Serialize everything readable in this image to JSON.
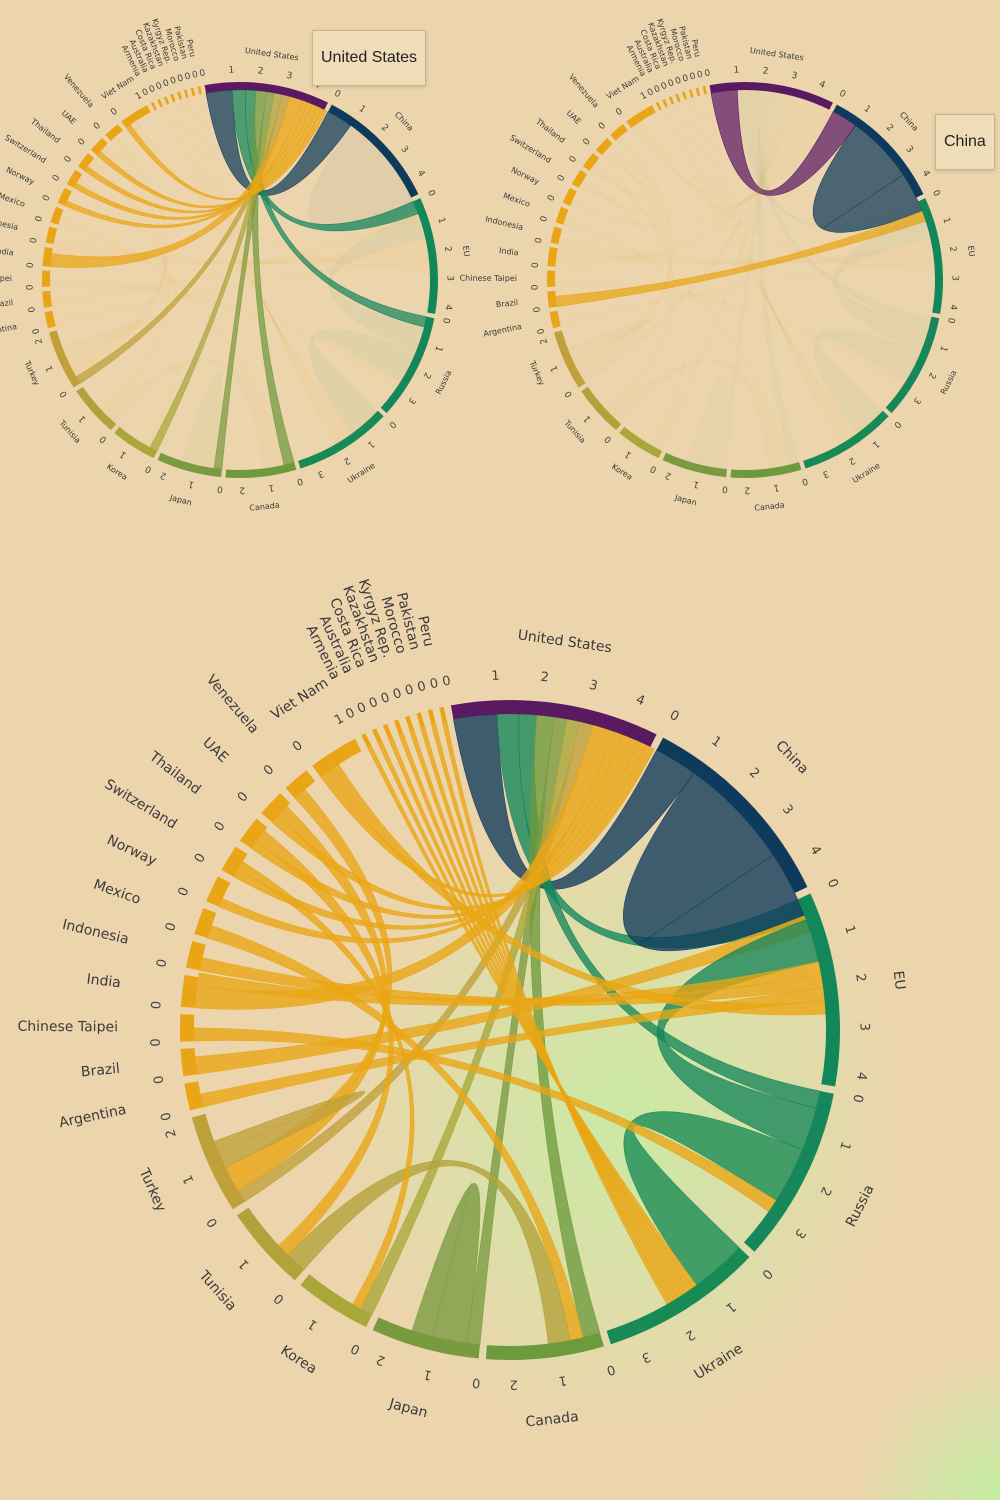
{
  "chart_data": [
    {
      "type": "chord",
      "title": "",
      "highlight": "United States",
      "tooltip": "United States"
    },
    {
      "type": "chord",
      "title": "",
      "highlight": "China",
      "tooltip": "China"
    },
    {
      "type": "chord",
      "title": "",
      "highlight": "",
      "tooltip": ""
    }
  ],
  "groups": [
    {
      "name": "United States",
      "value": 4.6,
      "color": "#5a1a62"
    },
    {
      "name": "China",
      "value": 4.6,
      "color": "#0e3a5c"
    },
    {
      "name": "EU",
      "value": 4.3,
      "color": "#12875a"
    },
    {
      "name": "Russia",
      "value": 3.9,
      "color": "#16875a"
    },
    {
      "name": "Ukraine",
      "value": 3.6,
      "color": "#178a55"
    },
    {
      "name": "Canada",
      "value": 2.6,
      "color": "#6e9a3e"
    },
    {
      "name": "Japan",
      "value": 2.4,
      "color": "#7a9a40"
    },
    {
      "name": "Korea",
      "value": 1.7,
      "color": "#a9a63a"
    },
    {
      "name": "Tunisia",
      "value": 1.9,
      "color": "#b3a23a"
    },
    {
      "name": "Turkey",
      "value": 2.2,
      "color": "#bfa03a"
    },
    {
      "name": "Argentina",
      "value": 0.6,
      "color": "#e9a515"
    },
    {
      "name": "Brazil",
      "value": 0.6,
      "color": "#e9a515"
    },
    {
      "name": "Chinese Taipei",
      "value": 0.6,
      "color": "#e9a515"
    },
    {
      "name": "India",
      "value": 0.7,
      "color": "#e9a515"
    },
    {
      "name": "Indonesia",
      "value": 0.6,
      "color": "#e9a515"
    },
    {
      "name": "Mexico",
      "value": 0.6,
      "color": "#e9a515"
    },
    {
      "name": "Norway",
      "value": 0.6,
      "color": "#e9a515"
    },
    {
      "name": "Switzerland",
      "value": 0.6,
      "color": "#e9a515"
    },
    {
      "name": "Thailand",
      "value": 0.6,
      "color": "#e9a515"
    },
    {
      "name": "UAE",
      "value": 0.6,
      "color": "#e9a515"
    },
    {
      "name": "Venezuela",
      "value": 0.6,
      "color": "#e9a515"
    },
    {
      "name": "Viet Nam",
      "value": 1.1,
      "color": "#e9a515"
    },
    {
      "name": "Armenia",
      "value": 0.1,
      "color": "#e9a515"
    },
    {
      "name": "Australia",
      "value": 0.1,
      "color": "#e9a515"
    },
    {
      "name": "Costa Rica",
      "value": 0.1,
      "color": "#e9a515"
    },
    {
      "name": "Kazakhstan",
      "value": 0.1,
      "color": "#e9a515"
    },
    {
      "name": "Kyrgyz Rep.",
      "value": 0.1,
      "color": "#e9a515"
    },
    {
      "name": "Morocco",
      "value": 0.1,
      "color": "#e9a515"
    },
    {
      "name": "Pakistan",
      "value": 0.1,
      "color": "#e9a515"
    },
    {
      "name": "Peru",
      "value": 0.1,
      "color": "#e9a515"
    }
  ],
  "chords": [
    {
      "source": "United States",
      "target": "China",
      "value": 1.0
    },
    {
      "source": "United States",
      "target": "EU",
      "value": 0.5
    },
    {
      "source": "United States",
      "target": "Russia",
      "value": 0.4
    },
    {
      "source": "United States",
      "target": "Canada",
      "value": 0.4
    },
    {
      "source": "United States",
      "target": "Japan",
      "value": 0.3
    },
    {
      "source": "United States",
      "target": "Korea",
      "value": 0.3
    },
    {
      "source": "United States",
      "target": "Turkey",
      "value": 0.3
    },
    {
      "source": "United States",
      "target": "India",
      "value": 0.5
    },
    {
      "source": "United States",
      "target": "Norway",
      "value": 0.2
    },
    {
      "source": "United States",
      "target": "Switzerland",
      "value": 0.2
    },
    {
      "source": "United States",
      "target": "Thailand",
      "value": 0.2
    },
    {
      "source": "United States",
      "target": "UAE",
      "value": 0.2
    },
    {
      "source": "United States",
      "target": "Viet Nam",
      "value": 0.2
    },
    {
      "source": "China",
      "target": "China",
      "value": 2.6
    },
    {
      "source": "China",
      "target": "Brazil",
      "value": 0.4
    },
    {
      "source": "EU",
      "target": "Russia",
      "value": 1.0
    },
    {
      "source": "EU",
      "target": "India",
      "value": 0.3
    },
    {
      "source": "EU",
      "target": "Indonesia",
      "value": 0.3
    },
    {
      "source": "EU",
      "target": "Argentina",
      "value": 0.3
    },
    {
      "source": "EU",
      "target": "Viet Nam",
      "value": 0.3
    },
    {
      "source": "Russia",
      "target": "Ukraine",
      "value": 1.3
    },
    {
      "source": "Russia",
      "target": "Chinese Taipei",
      "value": 0.3
    },
    {
      "source": "Ukraine",
      "target": "Armenia",
      "value": 0.1
    },
    {
      "source": "Ukraine",
      "target": "Australia",
      "value": 0.1
    },
    {
      "source": "Ukraine",
      "target": "Costa Rica",
      "value": 0.1
    },
    {
      "source": "Ukraine",
      "target": "Kazakhstan",
      "value": 0.1
    },
    {
      "source": "Ukraine",
      "target": "Kyrgyz Rep.",
      "value": 0.1
    },
    {
      "source": "Ukraine",
      "target": "Morocco",
      "value": 0.1
    },
    {
      "source": "Ukraine",
      "target": "Pakistan",
      "value": 0.1
    },
    {
      "source": "Ukraine",
      "target": "Peru",
      "value": 0.1
    },
    {
      "source": "Canada",
      "target": "Mexico",
      "value": 0.3
    },
    {
      "source": "Canada",
      "target": "Tunisia",
      "value": 0.5
    },
    {
      "source": "Japan",
      "target": "Japan",
      "value": 0.8
    },
    {
      "source": "Korea",
      "target": "Switzerland",
      "value": 0.2
    },
    {
      "source": "Tunisia",
      "target": "Thailand",
      "value": 0.3
    },
    {
      "source": "Turkey",
      "target": "UAE",
      "value": 0.3
    },
    {
      "source": "Turkey",
      "target": "Venezuela",
      "value": 0.3
    },
    {
      "source": "Turkey",
      "target": "Turkey",
      "value": 0.4
    }
  ]
}
